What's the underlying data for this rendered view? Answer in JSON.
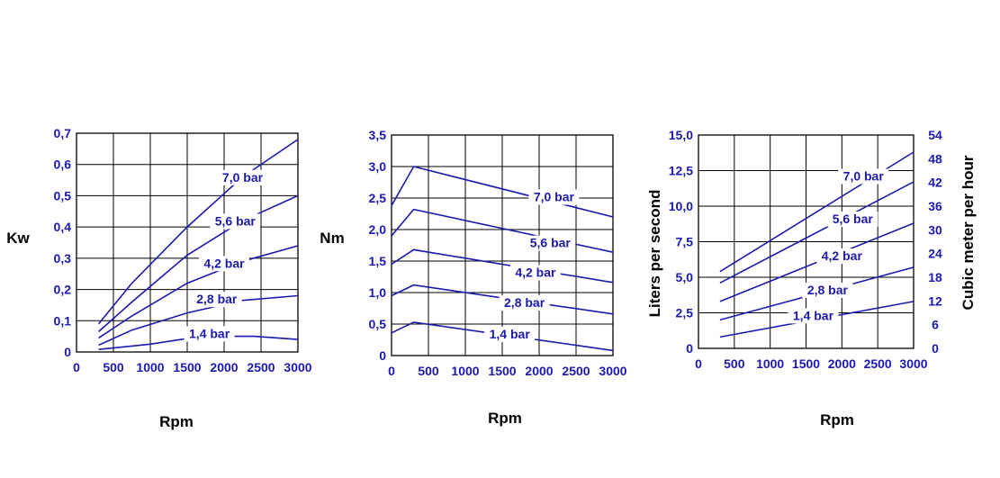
{
  "colors": {
    "curve": "#1a1ab0",
    "tick": "#1a1ab0",
    "grid": "#000000",
    "axis_title": "#000000"
  },
  "chart_data": [
    {
      "type": "line",
      "ylabel": "Kw",
      "xlabel": "Rpm",
      "xlim": [
        0,
        3000
      ],
      "ylim": [
        0,
        0.7
      ],
      "x_ticks": [
        "0",
        "500",
        "1000",
        "1500",
        "2000",
        "2500",
        "3000"
      ],
      "y_ticks": [
        "0",
        "0,1",
        "0,2",
        "0,3",
        "0,4",
        "0,5",
        "0,6",
        "0,7"
      ],
      "grid": true,
      "series": [
        {
          "name": "7,0 bar",
          "x": [
            300,
            750,
            1500,
            2250,
            3000
          ],
          "y": [
            0.09,
            0.22,
            0.4,
            0.56,
            0.68
          ]
        },
        {
          "name": "5,6 bar",
          "x": [
            300,
            750,
            1500,
            2250,
            3000
          ],
          "y": [
            0.065,
            0.16,
            0.31,
            0.42,
            0.5
          ]
        },
        {
          "name": "4,2 bar",
          "x": [
            300,
            750,
            1500,
            2250,
            3000
          ],
          "y": [
            0.045,
            0.115,
            0.22,
            0.29,
            0.34
          ]
        },
        {
          "name": "2,8 bar",
          "x": [
            300,
            750,
            1500,
            2250,
            3000
          ],
          "y": [
            0.022,
            0.07,
            0.125,
            0.165,
            0.18
          ]
        },
        {
          "name": "1,4 bar",
          "x": [
            300,
            1000,
            1700,
            2400,
            3000
          ],
          "y": [
            0.008,
            0.025,
            0.05,
            0.05,
            0.04
          ]
        }
      ]
    },
    {
      "type": "line",
      "ylabel": "Nm",
      "xlabel": "Rpm",
      "xlim": [
        0,
        3000
      ],
      "ylim": [
        0,
        3.5
      ],
      "x_ticks": [
        "0",
        "500",
        "1000",
        "1500",
        "2000",
        "2500",
        "3000"
      ],
      "y_ticks": [
        "0",
        "0,5",
        "1,0",
        "1,5",
        "2,0",
        "2,5",
        "3,0",
        "3,5"
      ],
      "grid": true,
      "series": [
        {
          "name": "7,0 bar",
          "x": [
            0,
            300,
            3000
          ],
          "y": [
            2.38,
            3.0,
            2.2
          ]
        },
        {
          "name": "5,6 bar",
          "x": [
            0,
            300,
            3000
          ],
          "y": [
            1.9,
            2.32,
            1.64
          ]
        },
        {
          "name": "4,2 bar",
          "x": [
            0,
            300,
            3000
          ],
          "y": [
            1.45,
            1.68,
            1.16
          ]
        },
        {
          "name": "2,8 bar",
          "x": [
            0,
            300,
            3000
          ],
          "y": [
            0.95,
            1.12,
            0.66
          ]
        },
        {
          "name": "1,4 bar",
          "x": [
            0,
            300,
            3000
          ],
          "y": [
            0.36,
            0.53,
            0.08
          ]
        }
      ]
    },
    {
      "type": "line",
      "ylabel": "Liters per second",
      "y2label": "Cubic meter per hour",
      "xlabel": "Rpm",
      "xlim": [
        0,
        3000
      ],
      "ylim": [
        0,
        15
      ],
      "y2lim": [
        0,
        54
      ],
      "x_ticks": [
        "0",
        "500",
        "1000",
        "1500",
        "2000",
        "2500",
        "3000"
      ],
      "y_ticks": [
        "0",
        "2,5",
        "5,0",
        "7,5",
        "10,0",
        "12,5",
        "15,0"
      ],
      "y2_ticks": [
        "0",
        "6",
        "12",
        "18",
        "24",
        "30",
        "36",
        "42",
        "48",
        "54"
      ],
      "grid": true,
      "series": [
        {
          "name": "7,0 bar",
          "x": [
            300,
            3000
          ],
          "y": [
            5.4,
            13.8
          ]
        },
        {
          "name": "5,6 bar",
          "x": [
            300,
            3000
          ],
          "y": [
            4.6,
            11.7
          ]
        },
        {
          "name": "4,2 bar",
          "x": [
            300,
            3000
          ],
          "y": [
            3.3,
            8.8
          ]
        },
        {
          "name": "2,8 bar",
          "x": [
            300,
            3000
          ],
          "y": [
            2.0,
            5.7
          ]
        },
        {
          "name": "1,4 bar",
          "x": [
            300,
            3000
          ],
          "y": [
            0.8,
            3.3
          ]
        }
      ]
    }
  ]
}
